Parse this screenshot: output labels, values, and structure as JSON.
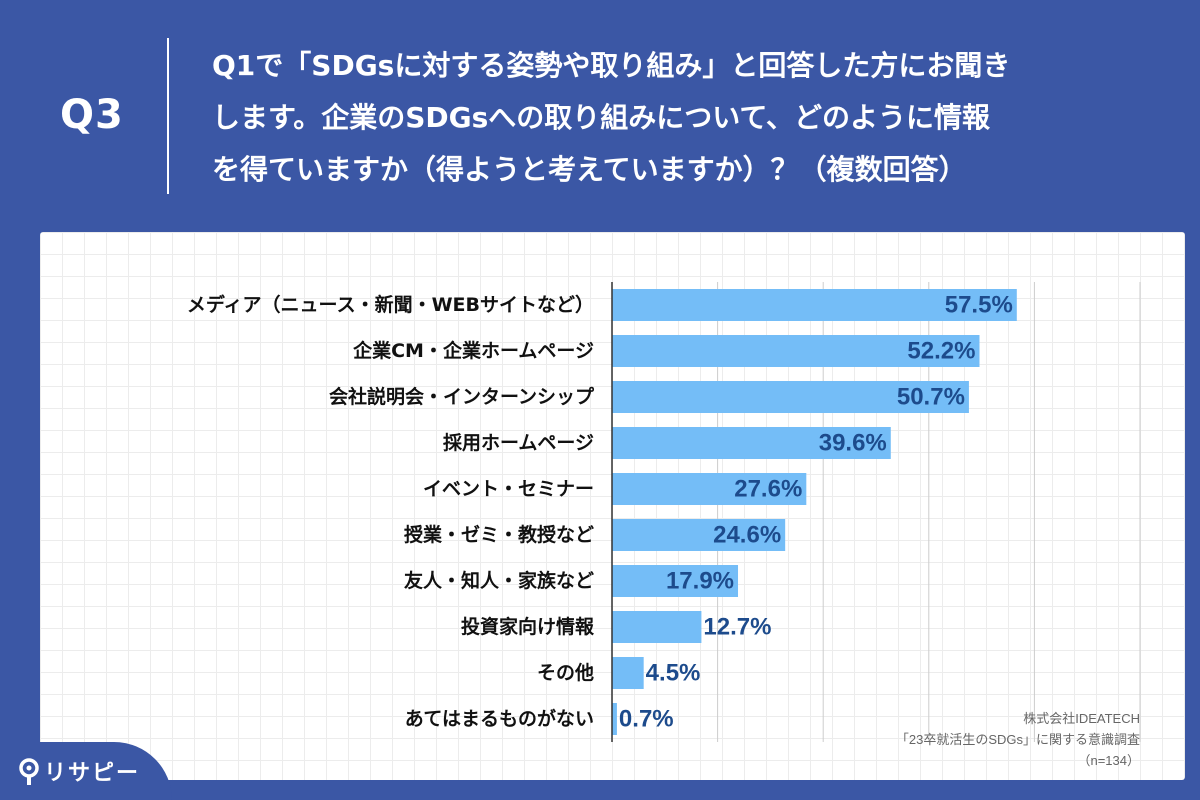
{
  "header": {
    "q_number": "Q3",
    "question_lines": [
      "Q1で「SDGsに対する姿勢や取り組み」と回答した方にお聞き",
      "します。企業のSDGsへの取り組みについて、どのように情報",
      "を得ていますか（得ようと考えていますか）？（複数回答）"
    ]
  },
  "colors": {
    "header_bg": "#3b57a5",
    "bar": "#74bdf7",
    "value_text": "#1d4b8c",
    "label_text": "#111111",
    "gridline": "#cccccc"
  },
  "chart_data": {
    "type": "bar",
    "orientation": "horizontal",
    "categories": [
      "メディア（ニュース・新聞・WEBサイトなど）",
      "企業CM・企業ホームページ",
      "会社説明会・インターンシップ",
      "採用ホームページ",
      "イベント・セミナー",
      "授業・ゼミ・教授など",
      "友人・知人・家族など",
      "投資家向け情報",
      "その他",
      "あてはまるものがない"
    ],
    "values": [
      57.5,
      52.2,
      50.7,
      39.6,
      27.6,
      24.6,
      17.9,
      12.7,
      4.5,
      0.7
    ],
    "value_labels": [
      "57.5%",
      "52.2%",
      "50.7%",
      "39.6%",
      "27.6%",
      "24.6%",
      "17.9%",
      "12.7%",
      "4.5%",
      "0.7%"
    ],
    "xlim": [
      0,
      75
    ],
    "grid": true
  },
  "source": {
    "company": "株式会社IDEATECH",
    "survey": "「23卒就活生のSDGs」に関する意識調査",
    "sample": "（n=134）"
  },
  "brand": {
    "name": "リサピー"
  }
}
